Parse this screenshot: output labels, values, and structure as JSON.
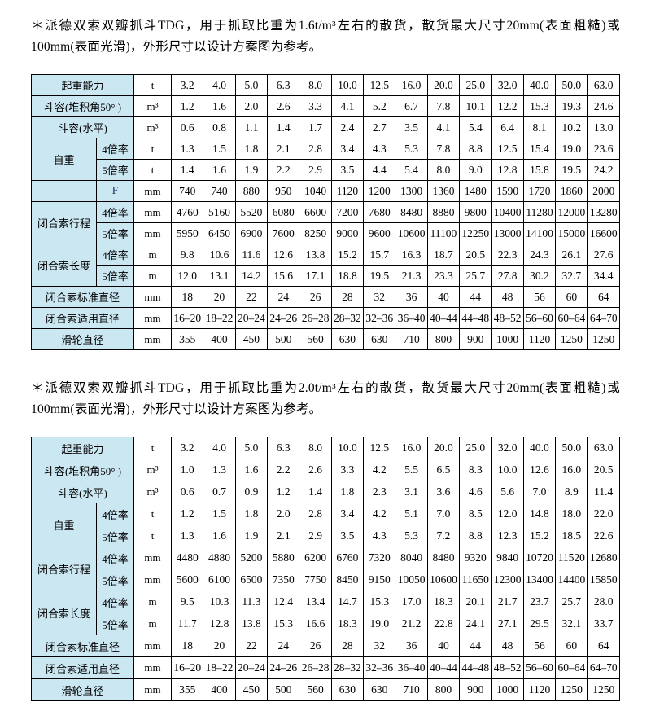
{
  "colors": {
    "header_bg": "#cbe7f2",
    "border": "#000000",
    "text": "#000000",
    "f_label_text": "#223a6b"
  },
  "paragraphs": [
    {
      "text": "＊派德双索双瓣抓斗TDG，用于抓取比重为1.6t/m³左右的散货，散货最大尺寸20mm(表面粗糙)或100mm(表面光滑)，外形尺寸以设计方案图为参考。"
    },
    {
      "text": "＊派德双索双瓣抓斗TDG，用于抓取比重为2.0t/m³左右的散货，散货最大尺寸20mm(表面粗糙)或100mm(表面光滑)，外形尺寸以设计方案图为参考。"
    }
  ],
  "tables": [
    {
      "name": "TDG 1.6t/m³ 规格表",
      "rows": [
        [
          {
            "t": "起重能力",
            "cs": 2,
            "h": 1
          },
          {
            "t": "t",
            "u": 1
          },
          "3.2",
          "4.0",
          "5.0",
          "6.3",
          "8.0",
          "10.0",
          "12.5",
          "16.0",
          "20.0",
          "25.0",
          "32.0",
          "40.0",
          "50.0",
          "63.0"
        ],
        [
          {
            "t": "斗容(堆积角50° )",
            "cs": 2,
            "h": 1
          },
          {
            "t": "m³",
            "u": 1
          },
          "1.2",
          "1.6",
          "2.0",
          "2.6",
          "3.3",
          "4.1",
          "5.2",
          "6.7",
          "7.8",
          "10.1",
          "12.2",
          "15.3",
          "19.3",
          "24.6"
        ],
        [
          {
            "t": "斗容(水平)",
            "cs": 2,
            "h": 1
          },
          {
            "t": "m³",
            "u": 1
          },
          "0.6",
          "0.8",
          "1.1",
          "1.4",
          "1.7",
          "2.4",
          "2.7",
          "3.5",
          "4.1",
          "5.4",
          "6.4",
          "8.1",
          "10.2",
          "13.0"
        ],
        [
          {
            "t": "自重",
            "rs": 2,
            "h": 1
          },
          {
            "t": "4倍率",
            "h": 1
          },
          {
            "t": "t",
            "u": 1
          },
          "1.3",
          "1.5",
          "1.8",
          "2.1",
          "2.8",
          "3.4",
          "4.3",
          "5.3",
          "7.8",
          "8.8",
          "12.5",
          "15.4",
          "19.0",
          "23.6"
        ],
        [
          {
            "t": "5倍率",
            "h": 1
          },
          {
            "t": "t",
            "u": 1
          },
          "1.4",
          "1.6",
          "1.9",
          "2.2",
          "2.9",
          "3.5",
          "4.4",
          "5.4",
          "8.0",
          "9.0",
          "12.8",
          "15.8",
          "19.5",
          "24.2"
        ],
        [
          {
            "t": "",
            "h": 1
          },
          {
            "t": "F",
            "h": 1,
            "f": 1
          },
          {
            "t": "mm",
            "u": 1
          },
          "740",
          "740",
          "880",
          "950",
          "1040",
          "1120",
          "1200",
          "1300",
          "1360",
          "1480",
          "1590",
          "1720",
          "1860",
          "2000"
        ],
        [
          {
            "t": "闭合索行程",
            "rs": 2,
            "h": 1
          },
          {
            "t": "4倍率",
            "h": 1
          },
          {
            "t": "mm",
            "u": 1
          },
          "4760",
          "5160",
          "5520",
          "6080",
          "6600",
          "7200",
          "7680",
          "8480",
          "8880",
          "9800",
          "10400",
          "11280",
          "12000",
          "13280"
        ],
        [
          {
            "t": "5倍率",
            "h": 1
          },
          {
            "t": "mm",
            "u": 1
          },
          "5950",
          "6450",
          "6900",
          "7600",
          "8250",
          "9000",
          "9600",
          "10600",
          "11100",
          "12250",
          "13000",
          "14100",
          "15000",
          "16600"
        ],
        [
          {
            "t": "闭合索长度",
            "rs": 2,
            "h": 1
          },
          {
            "t": "4倍率",
            "h": 1
          },
          {
            "t": "m",
            "u": 1
          },
          "9.8",
          "10.6",
          "11.6",
          "12.6",
          "13.8",
          "15.2",
          "15.7",
          "16.3",
          "18.7",
          "20.5",
          "22.3",
          "24.3",
          "26.1",
          "27.6"
        ],
        [
          {
            "t": "5倍率",
            "h": 1
          },
          {
            "t": "m",
            "u": 1
          },
          "12.0",
          "13.1",
          "14.2",
          "15.6",
          "17.1",
          "18.8",
          "19.5",
          "21.3",
          "23.3",
          "25.7",
          "27.8",
          "30.2",
          "32.7",
          "34.4"
        ],
        [
          {
            "t": "闭合索标准直径",
            "cs": 2,
            "h": 1
          },
          {
            "t": "mm",
            "u": 1
          },
          "18",
          "20",
          "22",
          "24",
          "26",
          "28",
          "32",
          "36",
          "40",
          "44",
          "48",
          "56",
          "60",
          "64"
        ],
        [
          {
            "t": "闭合索适用直径",
            "cs": 2,
            "h": 1
          },
          {
            "t": "mm",
            "u": 1
          },
          "16–20",
          "18–22",
          "20–24",
          "24–26",
          "26–28",
          "28–32",
          "32–36",
          "36–40",
          "40–44",
          "44–48",
          "48–52",
          "56–60",
          "60–64",
          "64–70"
        ],
        [
          {
            "t": "滑轮直径",
            "cs": 2,
            "h": 1
          },
          {
            "t": "mm",
            "u": 1
          },
          "355",
          "400",
          "450",
          "500",
          "560",
          "630",
          "630",
          "710",
          "800",
          "900",
          "1000",
          "1120",
          "1250",
          "1250"
        ]
      ]
    },
    {
      "name": "TDG 2.0t/m³ 规格表",
      "rows": [
        [
          {
            "t": "起重能力",
            "cs": 2,
            "h": 1
          },
          {
            "t": "t",
            "u": 1
          },
          "3.2",
          "4.0",
          "5.0",
          "6.3",
          "8.0",
          "10.0",
          "12.5",
          "16.0",
          "20.0",
          "25.0",
          "32.0",
          "40.0",
          "50.0",
          "63.0"
        ],
        [
          {
            "t": "斗容(堆积角50° )",
            "cs": 2,
            "h": 1
          },
          {
            "t": "m³",
            "u": 1
          },
          "1.0",
          "1.3",
          "1.6",
          "2.2",
          "2.6",
          "3.3",
          "4.2",
          "5.5",
          "6.5",
          "8.3",
          "10.0",
          "12.6",
          "16.0",
          "20.5"
        ],
        [
          {
            "t": "斗容(水平)",
            "cs": 2,
            "h": 1
          },
          {
            "t": "m³",
            "u": 1
          },
          "0.6",
          "0.7",
          "0.9",
          "1.2",
          "1.4",
          "1.8",
          "2.3",
          "3.1",
          "3.6",
          "4.6",
          "5.6",
          "7.0",
          "8.9",
          "11.4"
        ],
        [
          {
            "t": "自重",
            "rs": 2,
            "h": 1
          },
          {
            "t": "4倍率",
            "h": 1
          },
          {
            "t": "t",
            "u": 1
          },
          "1.2",
          "1.5",
          "1.8",
          "2.0",
          "2.8",
          "3.4",
          "4.2",
          "5.1",
          "7.0",
          "8.5",
          "12.0",
          "14.8",
          "18.0",
          "22.0"
        ],
        [
          {
            "t": "5倍率",
            "h": 1
          },
          {
            "t": "t",
            "u": 1
          },
          "1.3",
          "1.6",
          "1.9",
          "2.1",
          "2.9",
          "3.5",
          "4.3",
          "5.3",
          "7.2",
          "8.8",
          "12.3",
          "15.2",
          "18.5",
          "22.6"
        ],
        [
          {
            "t": "闭合索行程",
            "rs": 2,
            "h": 1
          },
          {
            "t": "4倍率",
            "h": 1
          },
          {
            "t": "mm",
            "u": 1
          },
          "4480",
          "4880",
          "5200",
          "5880",
          "6200",
          "6760",
          "7320",
          "8040",
          "8480",
          "9320",
          "9840",
          "10720",
          "11520",
          "12680"
        ],
        [
          {
            "t": "5倍率",
            "h": 1
          },
          {
            "t": "mm",
            "u": 1
          },
          "5600",
          "6100",
          "6500",
          "7350",
          "7750",
          "8450",
          "9150",
          "10050",
          "10600",
          "11650",
          "12300",
          "13400",
          "14400",
          "15850"
        ],
        [
          {
            "t": "闭合索长度",
            "rs": 2,
            "h": 1
          },
          {
            "t": "4倍率",
            "h": 1
          },
          {
            "t": "m",
            "u": 1
          },
          "9.5",
          "10.3",
          "11.3",
          "12.4",
          "13.4",
          "14.7",
          "15.3",
          "17.0",
          "18.3",
          "20.1",
          "21.7",
          "23.7",
          "25.7",
          "28.0"
        ],
        [
          {
            "t": "5倍率",
            "h": 1
          },
          {
            "t": "m",
            "u": 1
          },
          "11.7",
          "12.8",
          "13.8",
          "15.3",
          "16.6",
          "18.3",
          "19.0",
          "21.2",
          "22.8",
          "24.1",
          "27.1",
          "29.5",
          "32.1",
          "33.7"
        ],
        [
          {
            "t": "闭合索标准直径",
            "cs": 2,
            "h": 1
          },
          {
            "t": "mm",
            "u": 1
          },
          "18",
          "20",
          "22",
          "24",
          "26",
          "28",
          "32",
          "36",
          "40",
          "44",
          "48",
          "56",
          "60",
          "64"
        ],
        [
          {
            "t": "闭合索适用直径",
            "cs": 2,
            "h": 1
          },
          {
            "t": "mm",
            "u": 1
          },
          "16–20",
          "18–22",
          "20–24",
          "24–26",
          "26–28",
          "28–32",
          "32–36",
          "36–40",
          "40–44",
          "44–48",
          "48–52",
          "56–60",
          "60–64",
          "64–70"
        ],
        [
          {
            "t": "滑轮直径",
            "cs": 2,
            "h": 1
          },
          {
            "t": "mm",
            "u": 1
          },
          "355",
          "400",
          "450",
          "500",
          "560",
          "630",
          "630",
          "710",
          "800",
          "900",
          "1000",
          "1120",
          "1250",
          "1250"
        ]
      ]
    }
  ]
}
